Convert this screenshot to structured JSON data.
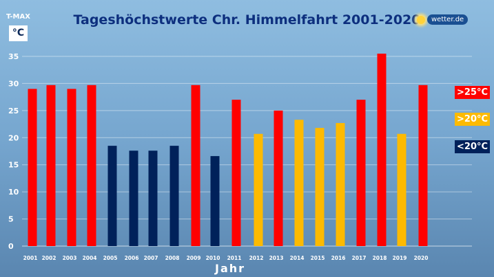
{
  "chart_data": {
    "type": "bar",
    "title": "Tageshöchstwerte Chr. Himmelfahrt 2001-2020",
    "ylabel": "T-MAX",
    "yunit": "°C",
    "xlabel": "Jahr",
    "ylim": [
      0,
      35
    ],
    "yticks": [
      0,
      5,
      10,
      15,
      20,
      25,
      30,
      35
    ],
    "grid": true,
    "legend_placement": "right",
    "categories": [
      "2001",
      "2002",
      "2003",
      "2004",
      "2005",
      "2006",
      "2007",
      "2008",
      "2009",
      "2010",
      "2011",
      "2012",
      "2013",
      "2014",
      "2015",
      "2016",
      "2017",
      "2018",
      "2019",
      "2020"
    ],
    "values": [
      29,
      29.7,
      29,
      29.7,
      18.5,
      17.6,
      17.6,
      18.5,
      29.7,
      16.6,
      27,
      20.7,
      25,
      23.3,
      21.8,
      22.7,
      27,
      35.5,
      20.7,
      29.7
    ],
    "legend": [
      {
        "label": ">25°C",
        "color": "#ff0000"
      },
      {
        "label": ">20°C",
        "color": "#fdba00"
      },
      {
        "label": "<20°C",
        "color": "#00215a"
      }
    ]
  },
  "brand": {
    "logo_text": "wetter.de",
    "icon": "sun-icon"
  }
}
